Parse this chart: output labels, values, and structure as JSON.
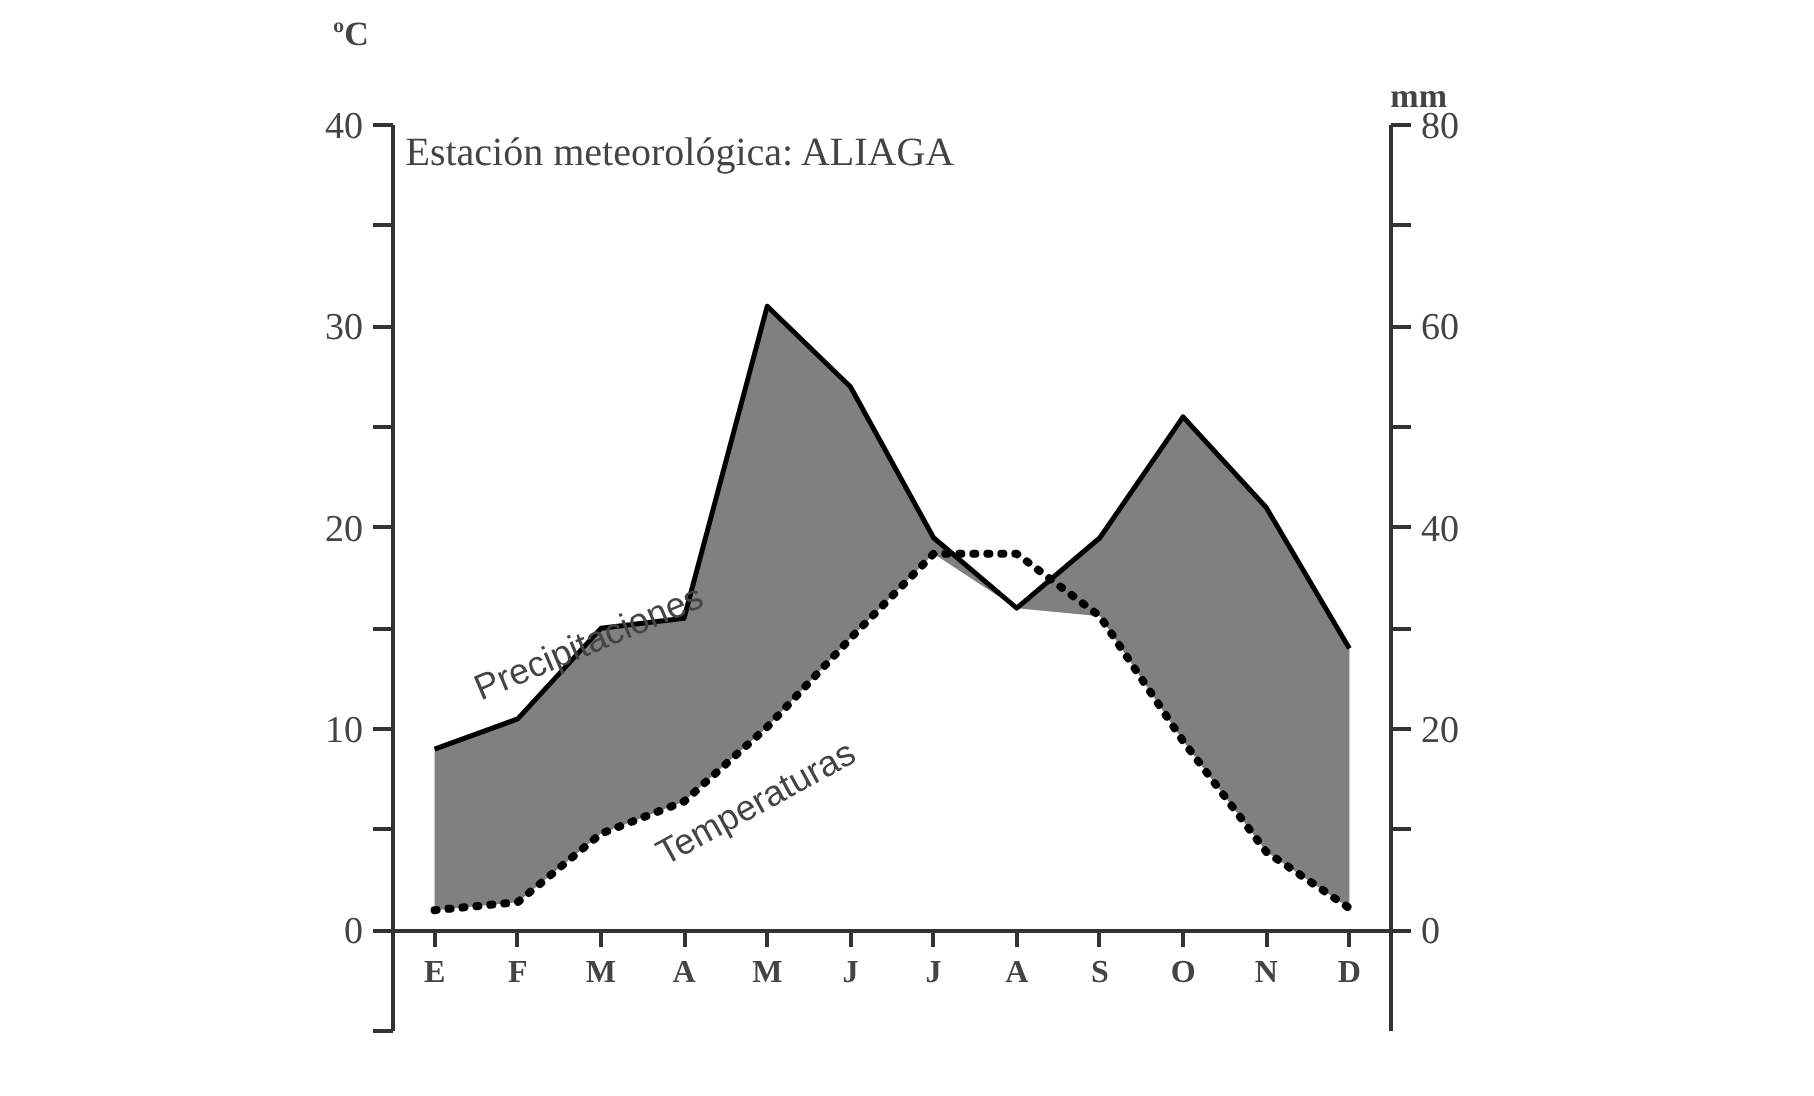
{
  "chart_data": {
    "type": "line",
    "title": "Estación meteorológica: ALIAGA",
    "ylabel": "ºC",
    "y2label": "mm",
    "categories": [
      "E",
      "F",
      "M",
      "A",
      "M",
      "J",
      "J",
      "A",
      "S",
      "O",
      "N",
      "D"
    ],
    "ylim": [
      -5,
      40
    ],
    "yticks": [
      {
        "value": -5,
        "label": null
      },
      0,
      {
        "value": 5,
        "label": null
      },
      10,
      {
        "value": 15,
        "label": null
      },
      20,
      {
        "value": 25,
        "label": null
      },
      30,
      {
        "value": 35,
        "label": null
      },
      40
    ],
    "y2lim": [
      -10,
      80
    ],
    "y2ticks": [
      0,
      {
        "value": 10,
        "label": null
      },
      20,
      {
        "value": 30,
        "label": null
      },
      40,
      {
        "value": 50,
        "label": null
      },
      60,
      {
        "value": 70,
        "label": null
      },
      80
    ],
    "series": [
      {
        "name": "Precipitaciones",
        "type": "area",
        "axis": "y2",
        "color": "#808080",
        "line_style": "solid",
        "values": [
          18,
          21,
          30,
          31,
          62,
          54,
          39,
          32,
          39,
          51,
          42,
          28
        ]
      },
      {
        "name": "Temperaturas",
        "color": "#000000",
        "line_style": "dotted",
        "values": [
          1.0,
          1.4,
          4.8,
          6.4,
          10.1,
          14.5,
          18.7,
          18.7,
          15.6,
          9.4,
          3.9,
          1.1
        ]
      }
    ],
    "grid": false
  }
}
